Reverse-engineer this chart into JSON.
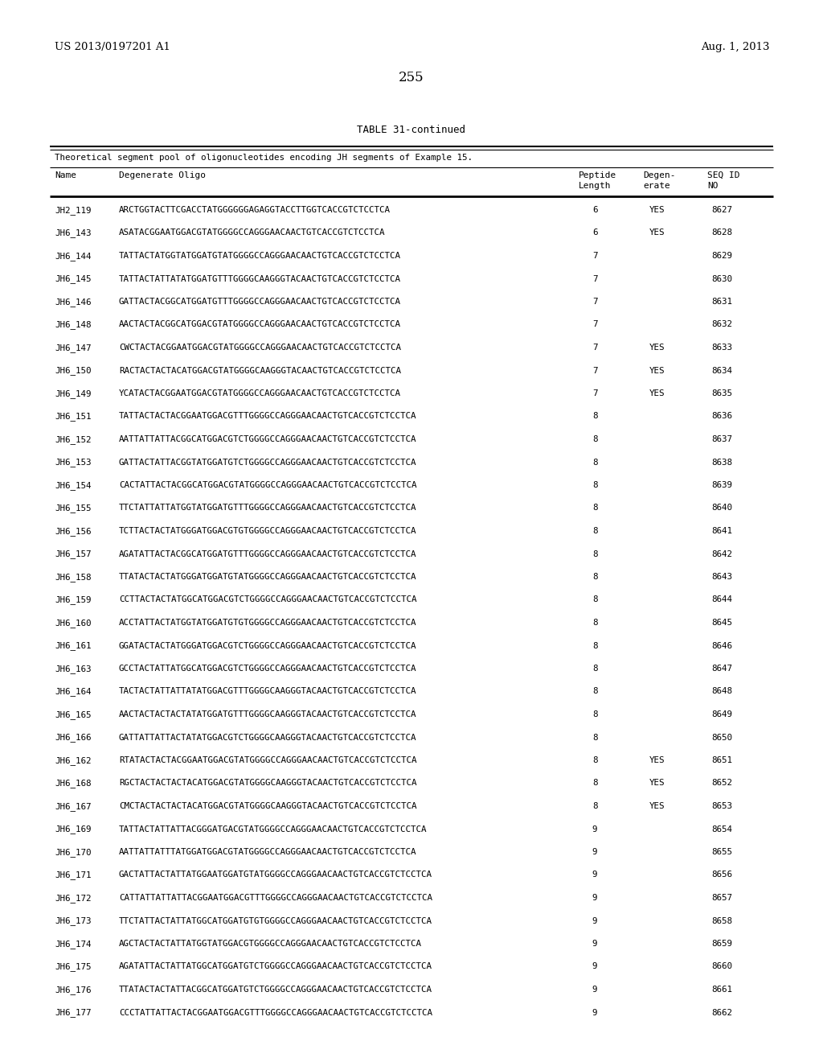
{
  "header_left": "US 2013/0197201 A1",
  "header_right": "Aug. 1, 2013",
  "page_number": "255",
  "table_title": "TABLE 31-continued",
  "table_subtitle": "Theoretical segment pool of oligonucleotides encoding JH segments of Example 15.",
  "rows": [
    [
      "JH2_119",
      "ARCTGGTACTTCGACCTATGGGGGGAGAGGTACCTTGGTCACCGTCTCCTCA",
      "6",
      "YES",
      "8627"
    ],
    [
      "JH6_143",
      "ASATACGGAATGGACGTATGGGGCCAGGGAACAACTGTCACCGTCTCCTCA",
      "6",
      "YES",
      "8628"
    ],
    [
      "JH6_144",
      "TATTACTATGGTATGGATGTATGGGGCCAGGGAACAACTGTCACCGTCTCCTCA",
      "7",
      "",
      "8629"
    ],
    [
      "JH6_145",
      "TATTACTATTATATGGATGTTTGGGGCAAGGGTACAACTGTCACCGTCTCCTCA",
      "7",
      "",
      "8630"
    ],
    [
      "JH6_146",
      "GATTACTACGGCATGGATGTTTGGGGCCAGGGAACAACTGTCACCGTCTCCTCA",
      "7",
      "",
      "8631"
    ],
    [
      "JH6_148",
      "AACTACTACGGCATGGACGTATGGGGCCAGGGAACAACTGTCACCGTCTCCTCA",
      "7",
      "",
      "8632"
    ],
    [
      "JH6_147",
      "CWCTACTACGGAATGGACGTATGGGGCCAGGGAACAACTGTCACCGTCTCCTCA",
      "7",
      "YES",
      "8633"
    ],
    [
      "JH6_150",
      "RACTACTACTACATGGACGTATGGGGCAAGGGTACAACTGTCACCGTCTCCTCA",
      "7",
      "YES",
      "8634"
    ],
    [
      "JH6_149",
      "YCATACTACGGAATGGACGTATGGGGCCAGGGAACAACTGTCACCGTCTCCTCA",
      "7",
      "YES",
      "8635"
    ],
    [
      "JH6_151",
      "TATTACTACTACGGAATGGACGTTTGGGGCCAGGGAACAACTGTCACCGTCTCCTCA",
      "8",
      "",
      "8636"
    ],
    [
      "JH6_152",
      "AATTATTATTACGGCATGGACGTCTGGGGCCAGGGAACAACTGTCACCGTCTCCTCA",
      "8",
      "",
      "8637"
    ],
    [
      "JH6_153",
      "GATTACTATTACGGTATGGATGTCTGGGGCCAGGGAACAACTGTCACCGTCTCCTCA",
      "8",
      "",
      "8638"
    ],
    [
      "JH6_154",
      "CACTATTACTACGGCATGGACGTATGGGGCCAGGGAACAACTGTCACCGTCTCCTCA",
      "8",
      "",
      "8639"
    ],
    [
      "JH6_155",
      "TTCTATTATTATGGTATGGATGTTTGGGGCCAGGGAACAACTGTCACCGTCTCCTCA",
      "8",
      "",
      "8640"
    ],
    [
      "JH6_156",
      "TCTTACTACTATGGGATGGACGTGTGGGGCCAGGGAACAACTGTCACCGTCTCCTCA",
      "8",
      "",
      "8641"
    ],
    [
      "JH6_157",
      "AGATATTACTACGGCATGGATGTTTGGGGCCAGGGAACAACTGTCACCGTCTCCTCA",
      "8",
      "",
      "8642"
    ],
    [
      "JH6_158",
      "TTATACTACTATGGGATGGATGTATGGGGCCAGGGAACAACTGTCACCGTCTCCTCA",
      "8",
      "",
      "8643"
    ],
    [
      "JH6_159",
      "CCTTACTACTATGGCATGGACGTCTGGGGCCAGGGAACAACTGTCACCGTCTCCTCA",
      "8",
      "",
      "8644"
    ],
    [
      "JH6_160",
      "ACCTATTACTATGGTATGGATGTGTGGGGCCAGGGAACAACTGTCACCGTCTCCTCA",
      "8",
      "",
      "8645"
    ],
    [
      "JH6_161",
      "GGATACTACTATGGGATGGACGTCTGGGGCCAGGGAACAACTGTCACCGTCTCCTCA",
      "8",
      "",
      "8646"
    ],
    [
      "JH6_163",
      "GCCTACTATTATGGCATGGACGTCTGGGGCCAGGGAACAACTGTCACCGTCTCCTCA",
      "8",
      "",
      "8647"
    ],
    [
      "JH6_164",
      "TACTACTATTATTATATGGACGTTTGGGGCAAGGGTACAACTGTCACCGTCTCCTCA",
      "8",
      "",
      "8648"
    ],
    [
      "JH6_165",
      "AACTACTACTACTATATGGATGTTTGGGGCAAGGGTACAACTGTCACCGTCTCCTCA",
      "8",
      "",
      "8649"
    ],
    [
      "JH6_166",
      "GATTATTATTACTATATGGACGTCTGGGGCAAGGGTACAACTGTCACCGTCTCCTCA",
      "8",
      "",
      "8650"
    ],
    [
      "JH6_162",
      "RTATACTACTACGGAATGGACGTATGGGGCCAGGGAACAACTGTCACCGTCTCCTCA",
      "8",
      "YES",
      "8651"
    ],
    [
      "JH6_168",
      "RGCTACTACTACTACATGGACGTATGGGGCAAGGGTACAACTGTCACCGTCTCCTCA",
      "8",
      "YES",
      "8652"
    ],
    [
      "JH6_167",
      "CMCTACTACTACTACATGGACGTATGGGGCAAGGGTACAACTGTCACCGTCTCCTCA",
      "8",
      "YES",
      "8653"
    ],
    [
      "JH6_169",
      "TATTACTATTATTACGGGATGACGTATGGGGCCAGGGAACAACTGTCACCGTCTCCTCA",
      "9",
      "",
      "8654"
    ],
    [
      "JH6_170",
      "AATTATTATTTATGGATGGACGTATGGGGCCAGGGAACAACTGTCACCGTCTCCTCA",
      "9",
      "",
      "8655"
    ],
    [
      "JH6_171",
      "GACTATTACTATTATGGAATGGATGTATGGGGCCAGGGAACAACTGTCACCGTCTCCTCA",
      "9",
      "",
      "8656"
    ],
    [
      "JH6_172",
      "CATTATTATTATTACGGAATGGACGTTTGGGGCCAGGGAACAACTGTCACCGTCTCCTCA",
      "9",
      "",
      "8657"
    ],
    [
      "JH6_173",
      "TTCTATTACTATTАТGGCATGGATGTGTGGGGCCAGGGAACAACTGTCACCGTCTCCTCA",
      "9",
      "",
      "8658"
    ],
    [
      "JH6_174",
      "AGCTACTACTATTATGGTATGGACGTGGGGCCAGGGAACAACTGTCACCGTCTCCTCA",
      "9",
      "",
      "8659"
    ],
    [
      "JH6_175",
      "AGATATTACTATTATGGCATGGATGTCTGGGGCCAGGGAACAACTGTCACCGTCTCCTCA",
      "9",
      "",
      "8660"
    ],
    [
      "JH6_176",
      "TTATACTACTATTACGGCATGGATGTCTGGGGCCAGGGAACAACTGTCACCGTCTCCTCA",
      "9",
      "",
      "8661"
    ],
    [
      "JH6_177",
      "CCCTATTATTACTACGGAATGGACGTTTGGGGCCAGGGAACAACTGTCACCGTCTCCTCA",
      "9",
      "",
      "8662"
    ]
  ],
  "bg_color": "#ffffff",
  "text_color": "#000000"
}
